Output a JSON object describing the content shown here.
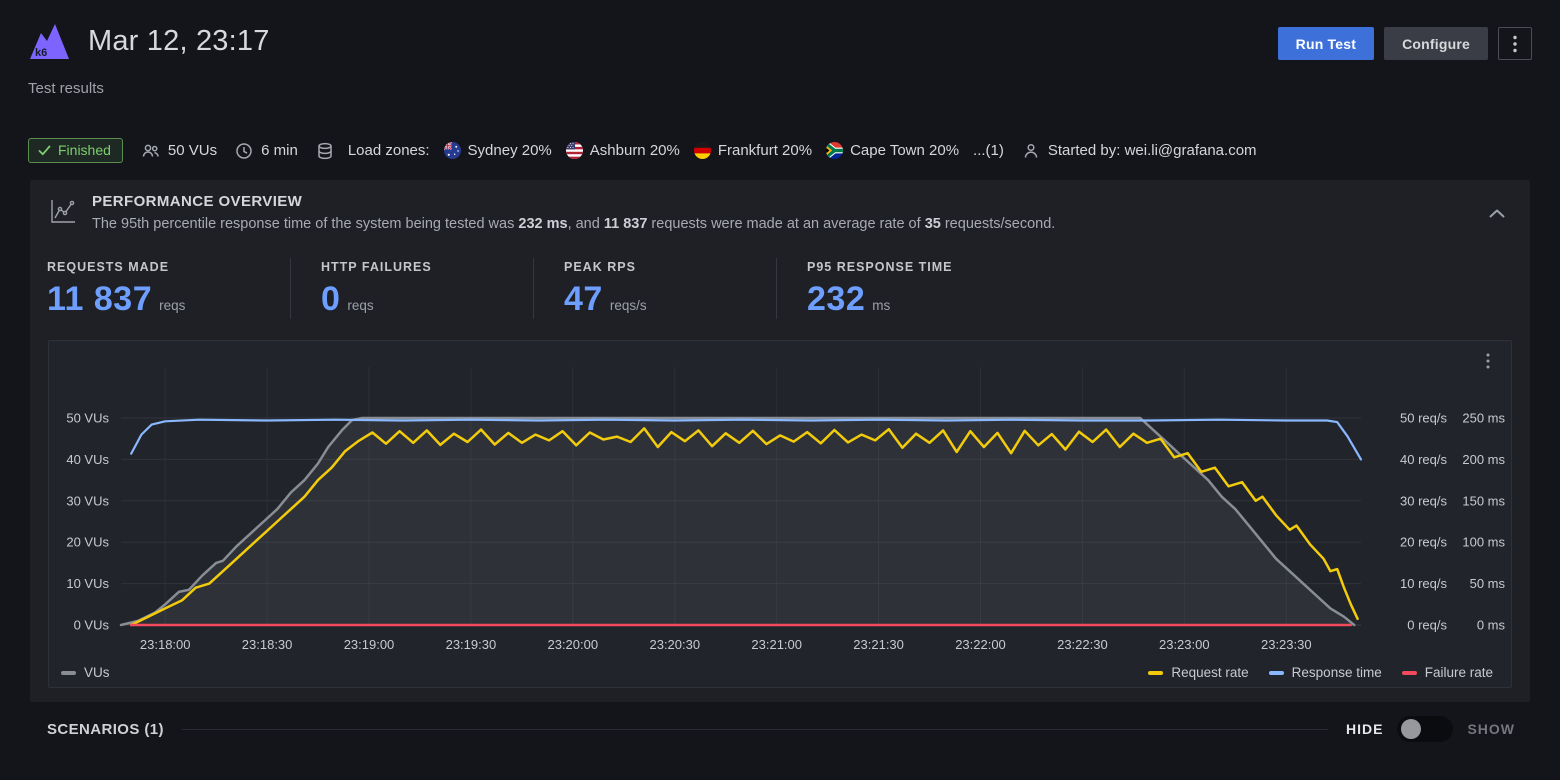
{
  "header": {
    "title": "Mar 12, 23:17",
    "subtitle": "Test results",
    "run_test_label": "Run Test",
    "configure_label": "Configure"
  },
  "status_bar": {
    "finished_label": "Finished",
    "vus": "50 VUs",
    "duration": "6 min",
    "load_zones_label": "Load zones:",
    "zones": [
      {
        "flag": "australia",
        "label": "Sydney 20%"
      },
      {
        "flag": "usa",
        "label": "Ashburn 20%"
      },
      {
        "flag": "germany",
        "label": "Frankfurt 20%"
      },
      {
        "flag": "south-africa",
        "label": "Cape Town 20%"
      }
    ],
    "more_zones_label": "...(1)",
    "started_by": "Started by: wei.li@grafana.com"
  },
  "overview": {
    "title": "PERFORMANCE OVERVIEW",
    "description_parts": [
      {
        "text": "The 95th percentile response time of the system being tested was "
      },
      {
        "text": "232 ms"
      },
      {
        "text": ", and "
      },
      {
        "text": "11 837"
      },
      {
        "text": " requests were made at an average rate of "
      },
      {
        "text": "35"
      },
      {
        "text": " requests/second."
      }
    ],
    "stats": [
      {
        "label": "REQUESTS MADE",
        "value": "11 837",
        "unit": "reqs"
      },
      {
        "label": "HTTP FAILURES",
        "value": "0",
        "unit": "reqs"
      },
      {
        "label": "PEAK RPS",
        "value": "47",
        "unit": "reqs/s"
      },
      {
        "label": "P95 RESPONSE TIME",
        "value": "232",
        "unit": "ms"
      }
    ]
  },
  "chart_data": {
    "type": "line",
    "x_domain_seconds": [
      -13,
      352
    ],
    "x_ticks": [
      "23:18:00",
      "23:18:30",
      "23:19:00",
      "23:19:30",
      "23:20:00",
      "23:20:30",
      "23:21:00",
      "23:21:30",
      "23:22:00",
      "23:22:30",
      "23:23:00",
      "23:23:30"
    ],
    "x_tick_seconds": [
      0,
      30,
      60,
      90,
      120,
      150,
      180,
      210,
      240,
      270,
      300,
      330
    ],
    "left_axis": {
      "title": "VUs",
      "max": 50,
      "labels": [
        "0 VUs",
        "10 VUs",
        "20 VUs",
        "30 VUs",
        "40 VUs",
        "50 VUs"
      ]
    },
    "right_axis_rps": {
      "title": "req/s",
      "max": 50,
      "labels": [
        "0 req/s",
        "10 req/s",
        "20 req/s",
        "30 req/s",
        "40 req/s",
        "50 req/s"
      ]
    },
    "right_axis_ms": {
      "title": "ms",
      "max": 250,
      "labels": [
        "0 ms",
        "50 ms",
        "100 ms",
        "150 ms",
        "200 ms",
        "250 ms"
      ]
    },
    "series": [
      {
        "id": "vus",
        "name": "VUs",
        "axis": "vus",
        "max": 50,
        "color": "#898D94",
        "width": 2.5,
        "fill_color": "rgba(160,165,175,0.10)",
        "points": [
          [
            -13,
            0
          ],
          [
            -8,
            1
          ],
          [
            -3,
            3
          ],
          [
            0,
            5
          ],
          [
            4,
            8
          ],
          [
            7,
            8.5
          ],
          [
            11,
            12
          ],
          [
            15,
            15
          ],
          [
            17,
            15.5
          ],
          [
            21,
            19
          ],
          [
            25,
            22
          ],
          [
            29,
            25
          ],
          [
            33,
            28
          ],
          [
            37,
            32
          ],
          [
            41,
            35
          ],
          [
            45,
            39
          ],
          [
            48,
            43
          ],
          [
            52,
            47
          ],
          [
            55,
            49.5
          ],
          [
            58,
            50
          ],
          [
            287,
            50
          ],
          [
            291,
            47
          ],
          [
            295,
            44
          ],
          [
            299,
            41
          ],
          [
            303,
            38
          ],
          [
            307,
            35
          ],
          [
            311,
            31
          ],
          [
            315,
            28
          ],
          [
            319,
            24
          ],
          [
            323,
            20
          ],
          [
            327,
            16
          ],
          [
            331,
            13
          ],
          [
            335,
            10
          ],
          [
            339,
            7
          ],
          [
            343,
            4
          ],
          [
            347,
            2
          ],
          [
            350,
            0
          ]
        ]
      },
      {
        "id": "request-rate",
        "name": "Request rate",
        "axis": "rps",
        "max": 50,
        "color": "#F2CC0C",
        "width": 2.5,
        "points": [
          [
            -10,
            0
          ],
          [
            -5,
            2
          ],
          [
            0,
            4
          ],
          [
            5,
            6
          ],
          [
            9,
            9
          ],
          [
            13,
            10
          ],
          [
            17,
            13
          ],
          [
            21,
            16
          ],
          [
            25,
            19
          ],
          [
            29,
            22
          ],
          [
            33,
            25
          ],
          [
            37,
            28
          ],
          [
            41,
            31
          ],
          [
            45,
            35
          ],
          [
            49,
            38
          ],
          [
            53,
            42
          ],
          [
            57,
            44.5
          ],
          [
            61,
            46.5
          ],
          [
            65,
            43.8
          ],
          [
            69,
            46.8
          ],
          [
            73,
            44
          ],
          [
            77,
            47
          ],
          [
            81,
            43.5
          ],
          [
            85,
            46.2
          ],
          [
            89,
            44.2
          ],
          [
            93,
            47.2
          ],
          [
            97,
            43.6
          ],
          [
            101,
            46.4
          ],
          [
            105,
            44
          ],
          [
            109,
            46
          ],
          [
            113,
            44.6
          ],
          [
            117,
            46.8
          ],
          [
            121,
            43.4
          ],
          [
            125,
            46.5
          ],
          [
            129,
            44.8
          ],
          [
            133,
            45.5
          ],
          [
            137,
            44.2
          ],
          [
            141,
            47.5
          ],
          [
            145,
            43
          ],
          [
            149,
            46.6
          ],
          [
            153,
            44.4
          ],
          [
            157,
            47
          ],
          [
            161,
            43.2
          ],
          [
            165,
            46.3
          ],
          [
            169,
            44
          ],
          [
            173,
            46.9
          ],
          [
            177,
            43.7
          ],
          [
            181,
            45.8
          ],
          [
            185,
            44.3
          ],
          [
            189,
            46.6
          ],
          [
            193,
            43.9
          ],
          [
            197,
            47.1
          ],
          [
            201,
            44.1
          ],
          [
            205,
            46
          ],
          [
            209,
            44.6
          ],
          [
            213,
            47.3
          ],
          [
            217,
            42.8
          ],
          [
            221,
            46.2
          ],
          [
            225,
            44
          ],
          [
            229,
            47
          ],
          [
            233,
            41.8
          ],
          [
            237,
            46.8
          ],
          [
            241,
            43
          ],
          [
            245,
            46.4
          ],
          [
            249,
            41.5
          ],
          [
            253,
            46.9
          ],
          [
            257,
            43.4
          ],
          [
            261,
            46.1
          ],
          [
            265,
            42.4
          ],
          [
            269,
            46.7
          ],
          [
            273,
            44.2
          ],
          [
            277,
            47.2
          ],
          [
            281,
            43
          ],
          [
            285,
            46.2
          ],
          [
            289,
            44
          ],
          [
            293,
            45
          ],
          [
            297,
            40.5
          ],
          [
            301,
            41.5
          ],
          [
            305,
            37
          ],
          [
            309,
            38
          ],
          [
            313,
            33.5
          ],
          [
            317,
            34.5
          ],
          [
            321,
            30
          ],
          [
            323,
            31
          ],
          [
            327,
            26.5
          ],
          [
            331,
            23
          ],
          [
            333,
            24
          ],
          [
            337,
            19.5
          ],
          [
            341,
            16
          ],
          [
            343,
            13
          ],
          [
            345,
            13.5
          ],
          [
            347,
            9
          ],
          [
            349,
            5
          ],
          [
            351,
            1.5
          ]
        ]
      },
      {
        "id": "failure-rate",
        "name": "Failure rate",
        "axis": "rps",
        "max": 50,
        "color": "#F2495C",
        "width": 2.5,
        "points": [
          [
            -10,
            0
          ],
          [
            349,
            0
          ]
        ]
      },
      {
        "id": "response-time",
        "name": "Response time",
        "axis": "ms",
        "max": 250,
        "color": "#8AB8FF",
        "width": 2.2,
        "points": [
          [
            -10,
            207
          ],
          [
            -7,
            230
          ],
          [
            -4,
            242
          ],
          [
            0,
            246
          ],
          [
            10,
            248
          ],
          [
            30,
            247
          ],
          [
            50,
            248
          ],
          [
            70,
            247
          ],
          [
            90,
            248
          ],
          [
            110,
            247
          ],
          [
            130,
            248
          ],
          [
            150,
            247
          ],
          [
            170,
            248
          ],
          [
            190,
            247
          ],
          [
            210,
            248
          ],
          [
            230,
            247
          ],
          [
            250,
            248
          ],
          [
            270,
            247
          ],
          [
            290,
            247
          ],
          [
            310,
            248
          ],
          [
            330,
            247
          ],
          [
            342,
            247
          ],
          [
            345,
            245
          ],
          [
            348,
            228
          ],
          [
            352,
            200
          ]
        ]
      }
    ],
    "legend_left": [
      {
        "id": "vus",
        "label": "VUs",
        "color": "#898D94"
      }
    ],
    "legend_right": [
      {
        "id": "request-rate",
        "label": "Request rate",
        "color": "#F2CC0C"
      },
      {
        "id": "response-time",
        "label": "Response time",
        "color": "#8AB8FF"
      },
      {
        "id": "failure-rate",
        "label": "Failure rate",
        "color": "#F2495C"
      }
    ]
  },
  "scenarios": {
    "title": "SCENARIOS (1)",
    "hide_label": "HIDE",
    "show_label": "SHOW"
  },
  "colors": {
    "accent_blue": "#3D71D9",
    "stat_value_blue": "#6E9FFF",
    "finished_green": "#73BF69",
    "yellow_series": "#F2CC0C",
    "blue_series": "#8AB8FF",
    "red_series": "#F2495C",
    "gray_series": "#898D94"
  }
}
